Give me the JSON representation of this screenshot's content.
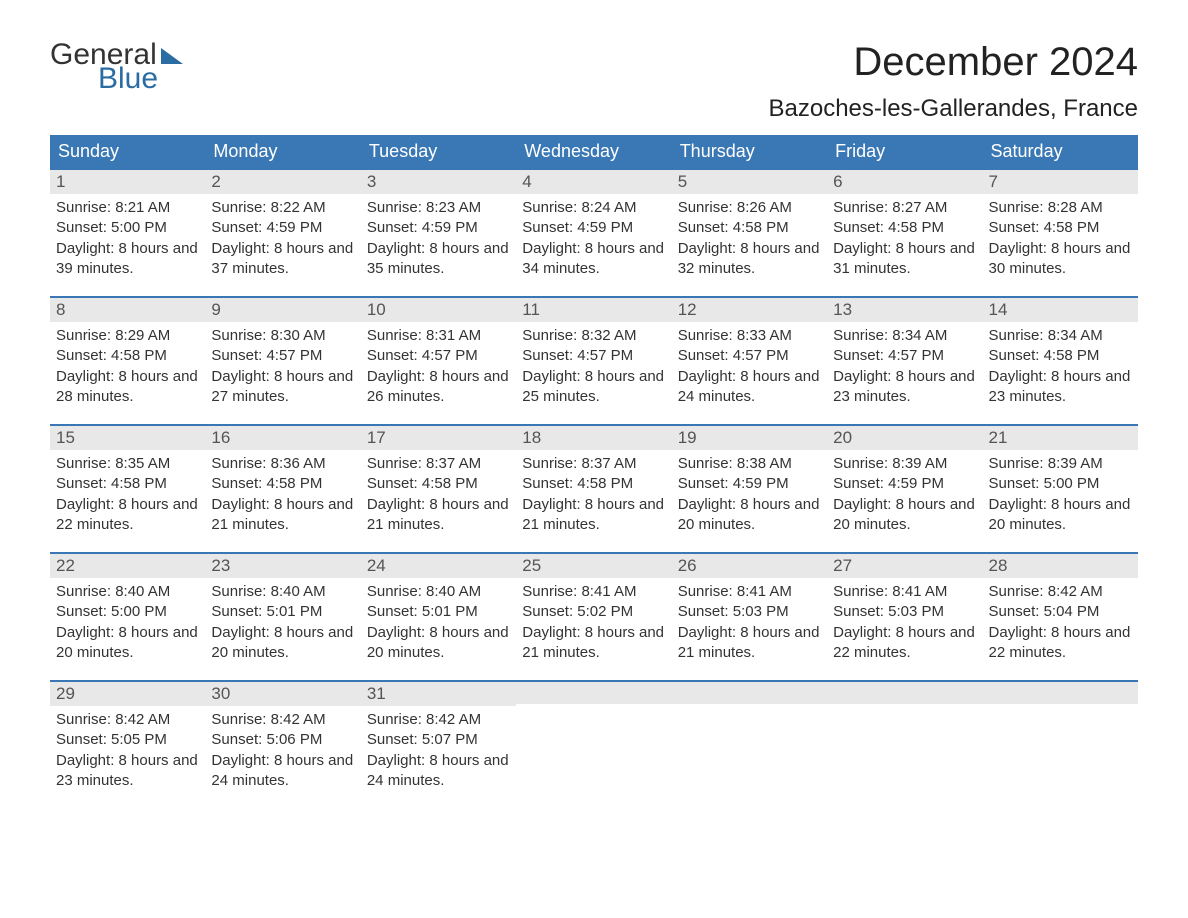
{
  "logo": {
    "word1": "General",
    "word2": "Blue"
  },
  "title": "December 2024",
  "location": "Bazoches-les-Gallerandes, France",
  "colors": {
    "header_bg": "#3a78b5",
    "header_text": "#ffffff",
    "daynum_bg": "#e8e8e8",
    "border_top": "#3a78b5",
    "logo_general": "#333333",
    "logo_blue": "#2b6ca3",
    "body_text": "#333333",
    "title_text": "#222222",
    "background": "#ffffff"
  },
  "typography": {
    "title_fontsize": 40,
    "location_fontsize": 24,
    "header_fontsize": 18,
    "daynum_fontsize": 17,
    "body_fontsize": 15,
    "font_family": "Arial"
  },
  "columns": [
    "Sunday",
    "Monday",
    "Tuesday",
    "Wednesday",
    "Thursday",
    "Friday",
    "Saturday"
  ],
  "weeks": [
    [
      {
        "n": "1",
        "sunrise": "8:21 AM",
        "sunset": "5:00 PM",
        "daylight": "8 hours and 39 minutes."
      },
      {
        "n": "2",
        "sunrise": "8:22 AM",
        "sunset": "4:59 PM",
        "daylight": "8 hours and 37 minutes."
      },
      {
        "n": "3",
        "sunrise": "8:23 AM",
        "sunset": "4:59 PM",
        "daylight": "8 hours and 35 minutes."
      },
      {
        "n": "4",
        "sunrise": "8:24 AM",
        "sunset": "4:59 PM",
        "daylight": "8 hours and 34 minutes."
      },
      {
        "n": "5",
        "sunrise": "8:26 AM",
        "sunset": "4:58 PM",
        "daylight": "8 hours and 32 minutes."
      },
      {
        "n": "6",
        "sunrise": "8:27 AM",
        "sunset": "4:58 PM",
        "daylight": "8 hours and 31 minutes."
      },
      {
        "n": "7",
        "sunrise": "8:28 AM",
        "sunset": "4:58 PM",
        "daylight": "8 hours and 30 minutes."
      }
    ],
    [
      {
        "n": "8",
        "sunrise": "8:29 AM",
        "sunset": "4:58 PM",
        "daylight": "8 hours and 28 minutes."
      },
      {
        "n": "9",
        "sunrise": "8:30 AM",
        "sunset": "4:57 PM",
        "daylight": "8 hours and 27 minutes."
      },
      {
        "n": "10",
        "sunrise": "8:31 AM",
        "sunset": "4:57 PM",
        "daylight": "8 hours and 26 minutes."
      },
      {
        "n": "11",
        "sunrise": "8:32 AM",
        "sunset": "4:57 PM",
        "daylight": "8 hours and 25 minutes."
      },
      {
        "n": "12",
        "sunrise": "8:33 AM",
        "sunset": "4:57 PM",
        "daylight": "8 hours and 24 minutes."
      },
      {
        "n": "13",
        "sunrise": "8:34 AM",
        "sunset": "4:57 PM",
        "daylight": "8 hours and 23 minutes."
      },
      {
        "n": "14",
        "sunrise": "8:34 AM",
        "sunset": "4:58 PM",
        "daylight": "8 hours and 23 minutes."
      }
    ],
    [
      {
        "n": "15",
        "sunrise": "8:35 AM",
        "sunset": "4:58 PM",
        "daylight": "8 hours and 22 minutes."
      },
      {
        "n": "16",
        "sunrise": "8:36 AM",
        "sunset": "4:58 PM",
        "daylight": "8 hours and 21 minutes."
      },
      {
        "n": "17",
        "sunrise": "8:37 AM",
        "sunset": "4:58 PM",
        "daylight": "8 hours and 21 minutes."
      },
      {
        "n": "18",
        "sunrise": "8:37 AM",
        "sunset": "4:58 PM",
        "daylight": "8 hours and 21 minutes."
      },
      {
        "n": "19",
        "sunrise": "8:38 AM",
        "sunset": "4:59 PM",
        "daylight": "8 hours and 20 minutes."
      },
      {
        "n": "20",
        "sunrise": "8:39 AM",
        "sunset": "4:59 PM",
        "daylight": "8 hours and 20 minutes."
      },
      {
        "n": "21",
        "sunrise": "8:39 AM",
        "sunset": "5:00 PM",
        "daylight": "8 hours and 20 minutes."
      }
    ],
    [
      {
        "n": "22",
        "sunrise": "8:40 AM",
        "sunset": "5:00 PM",
        "daylight": "8 hours and 20 minutes."
      },
      {
        "n": "23",
        "sunrise": "8:40 AM",
        "sunset": "5:01 PM",
        "daylight": "8 hours and 20 minutes."
      },
      {
        "n": "24",
        "sunrise": "8:40 AM",
        "sunset": "5:01 PM",
        "daylight": "8 hours and 20 minutes."
      },
      {
        "n": "25",
        "sunrise": "8:41 AM",
        "sunset": "5:02 PM",
        "daylight": "8 hours and 21 minutes."
      },
      {
        "n": "26",
        "sunrise": "8:41 AM",
        "sunset": "5:03 PM",
        "daylight": "8 hours and 21 minutes."
      },
      {
        "n": "27",
        "sunrise": "8:41 AM",
        "sunset": "5:03 PM",
        "daylight": "8 hours and 22 minutes."
      },
      {
        "n": "28",
        "sunrise": "8:42 AM",
        "sunset": "5:04 PM",
        "daylight": "8 hours and 22 minutes."
      }
    ],
    [
      {
        "n": "29",
        "sunrise": "8:42 AM",
        "sunset": "5:05 PM",
        "daylight": "8 hours and 23 minutes."
      },
      {
        "n": "30",
        "sunrise": "8:42 AM",
        "sunset": "5:06 PM",
        "daylight": "8 hours and 24 minutes."
      },
      {
        "n": "31",
        "sunrise": "8:42 AM",
        "sunset": "5:07 PM",
        "daylight": "8 hours and 24 minutes."
      },
      null,
      null,
      null,
      null
    ]
  ],
  "labels": {
    "sunrise_prefix": "Sunrise: ",
    "sunset_prefix": "Sunset: ",
    "daylight_prefix": "Daylight: "
  }
}
